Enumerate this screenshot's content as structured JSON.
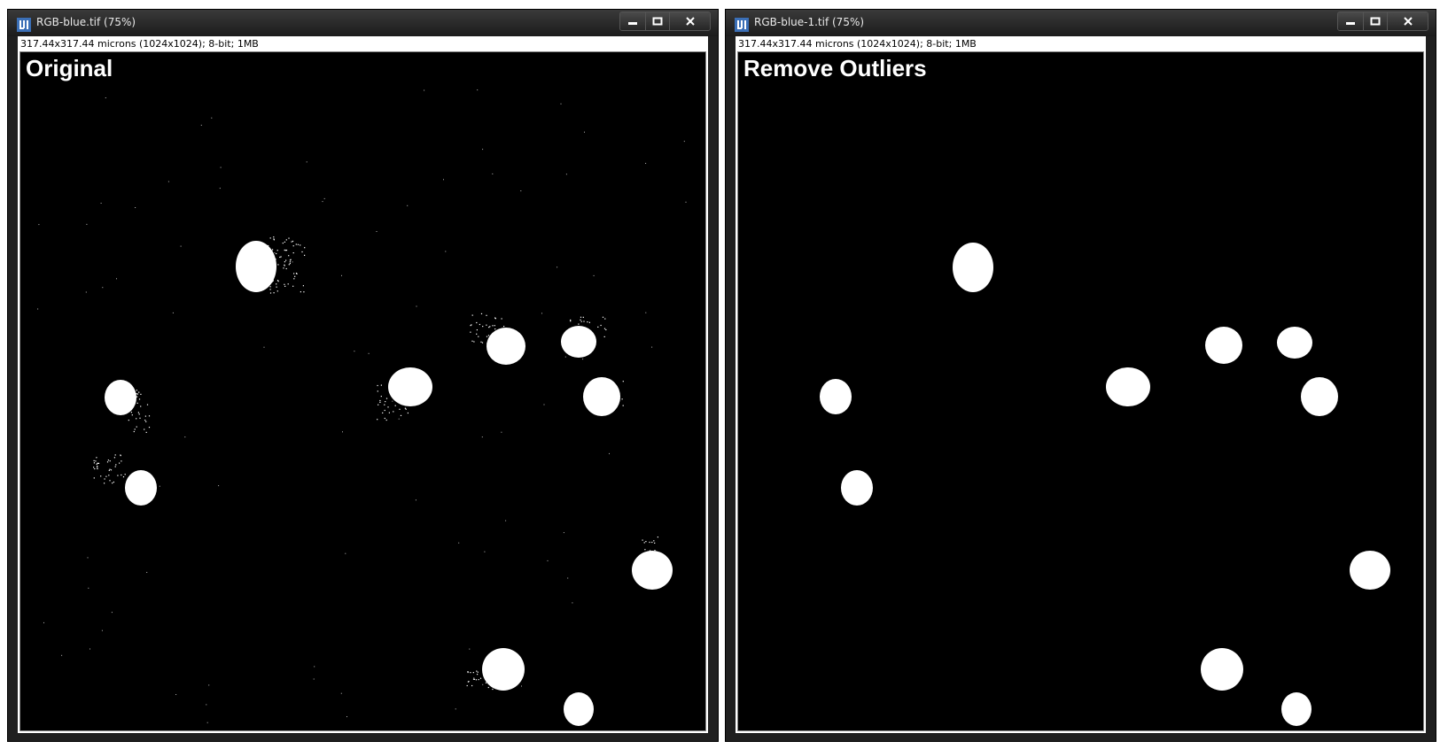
{
  "windows": [
    {
      "title": "RGB-blue.tif (75%)",
      "info": "317.44x317.44 microns (1024x1024); 8-bit; 1MB",
      "label": "Original"
    },
    {
      "title": "RGB-blue-1.tif (75%)",
      "info": "317.44x317.44 microns (1024x1024); 8-bit; 1MB",
      "label": "Remove Outliers"
    }
  ],
  "icons": {
    "app": "imagej-icon",
    "minimize": "minimize-icon",
    "maximize": "maximize-icon",
    "close": "close-icon"
  },
  "colors": {
    "image_background": "#000000",
    "particle": "#ffffff",
    "title_text": "#e8e8e8"
  }
}
